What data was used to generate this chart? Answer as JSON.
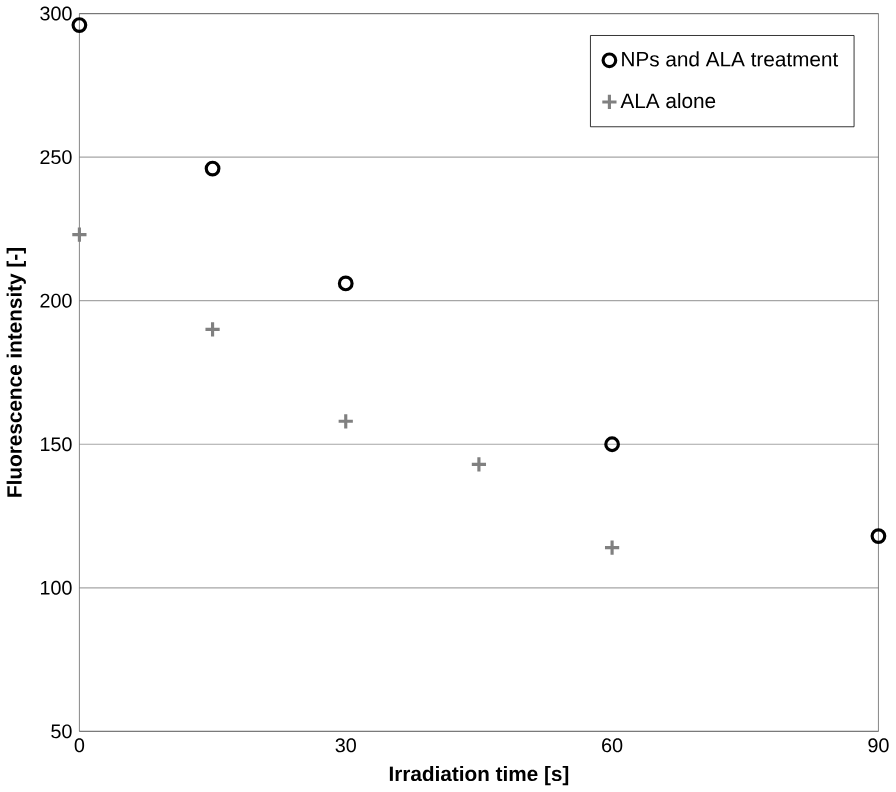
{
  "chart_data": {
    "type": "scatter",
    "xlabel": "Irradiation time [s]",
    "ylabel": "Fluorescence intensity [-]",
    "xlim": [
      0,
      90
    ],
    "ylim": [
      50,
      300
    ],
    "xticks": [
      0,
      30,
      60,
      90
    ],
    "yticks": [
      50,
      100,
      150,
      200,
      250,
      300
    ],
    "grid": "y",
    "legend": "top right",
    "series": [
      {
        "name": "NPs and ALA treatment",
        "color": "#000000",
        "marker": "circle",
        "x": [
          0,
          15,
          30,
          60,
          90
        ],
        "values": [
          296,
          246,
          206,
          150,
          118
        ]
      },
      {
        "name": "ALA alone",
        "color": "#808080",
        "marker": "cross",
        "x": [
          0,
          15,
          30,
          45,
          60
        ],
        "values": [
          223,
          190,
          158,
          143,
          114
        ]
      }
    ]
  }
}
